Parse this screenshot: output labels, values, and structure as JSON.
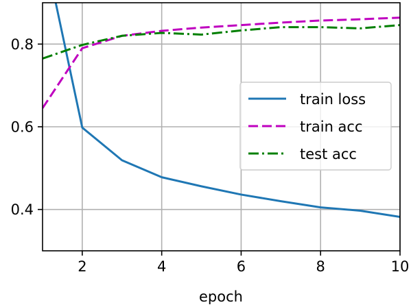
{
  "chart_data": {
    "type": "line",
    "xlabel": "epoch",
    "ylabel": "",
    "title": "",
    "xlim": [
      1,
      10
    ],
    "ylim": [
      0.3,
      0.9
    ],
    "xticks": [
      2,
      4,
      6,
      8,
      10
    ],
    "yticks": [
      0.4,
      0.6,
      0.8
    ],
    "xtick_labels": [
      "2",
      "4",
      "6",
      "8",
      "10"
    ],
    "ytick_labels": [
      "0.4",
      "0.6",
      "0.8"
    ],
    "grid": true,
    "legend_position": "center-right",
    "x": [
      1,
      2,
      3,
      4,
      5,
      6,
      7,
      8,
      9,
      10
    ],
    "series": [
      {
        "name": "train loss",
        "values": [
          1.05,
          0.598,
          0.519,
          0.478,
          0.456,
          0.436,
          0.42,
          0.405,
          0.397,
          0.382
        ],
        "color": "#1f77b4",
        "style": "solid"
      },
      {
        "name": "train acc",
        "values": [
          0.645,
          0.79,
          0.82,
          0.832,
          0.84,
          0.846,
          0.852,
          0.857,
          0.86,
          0.864
        ],
        "color": "#bf00bf",
        "style": "dashed"
      },
      {
        "name": "test acc",
        "values": [
          0.765,
          0.798,
          0.82,
          0.827,
          0.823,
          0.833,
          0.841,
          0.841,
          0.838,
          0.846
        ],
        "color": "#007f00",
        "style": "dashdot"
      }
    ]
  }
}
